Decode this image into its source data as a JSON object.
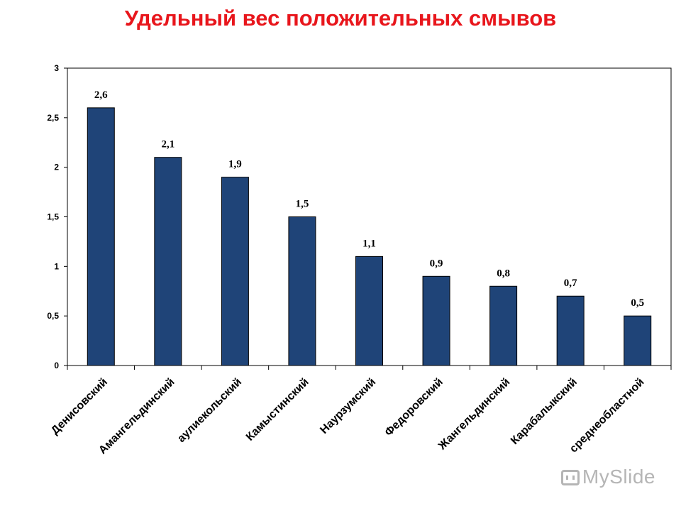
{
  "chart_data": {
    "type": "bar",
    "title": "Удельный вес положительных смывов",
    "categories": [
      "Денисовский",
      "Амангельдинский",
      "аулиекольский",
      "Камыстинский",
      "Наурзумский",
      "Федоровский",
      "Жангельдинский",
      "Карабалыкский",
      "среднеобластной"
    ],
    "values": [
      2.6,
      2.1,
      1.9,
      1.5,
      1.1,
      0.9,
      0.8,
      0.7,
      0.5
    ],
    "data_labels": [
      "2,6",
      "2,1",
      "1,9",
      "1,5",
      "1,1",
      "0,9",
      "0,8",
      "0,7",
      "0,5"
    ],
    "ylim": [
      0,
      3
    ],
    "yticks": [
      0,
      0.5,
      1,
      1.5,
      2,
      2.5,
      3
    ],
    "ytick_labels": [
      "0",
      "0,5",
      "1",
      "1,5",
      "2",
      "2,5",
      "3"
    ],
    "xlabel": "",
    "ylabel": "",
    "grid": false,
    "legend": "none",
    "bar_color": "#1f4478",
    "title_color": "#e8161c"
  },
  "watermark": {
    "text": "MySlide",
    "icon": "slides-icon"
  }
}
